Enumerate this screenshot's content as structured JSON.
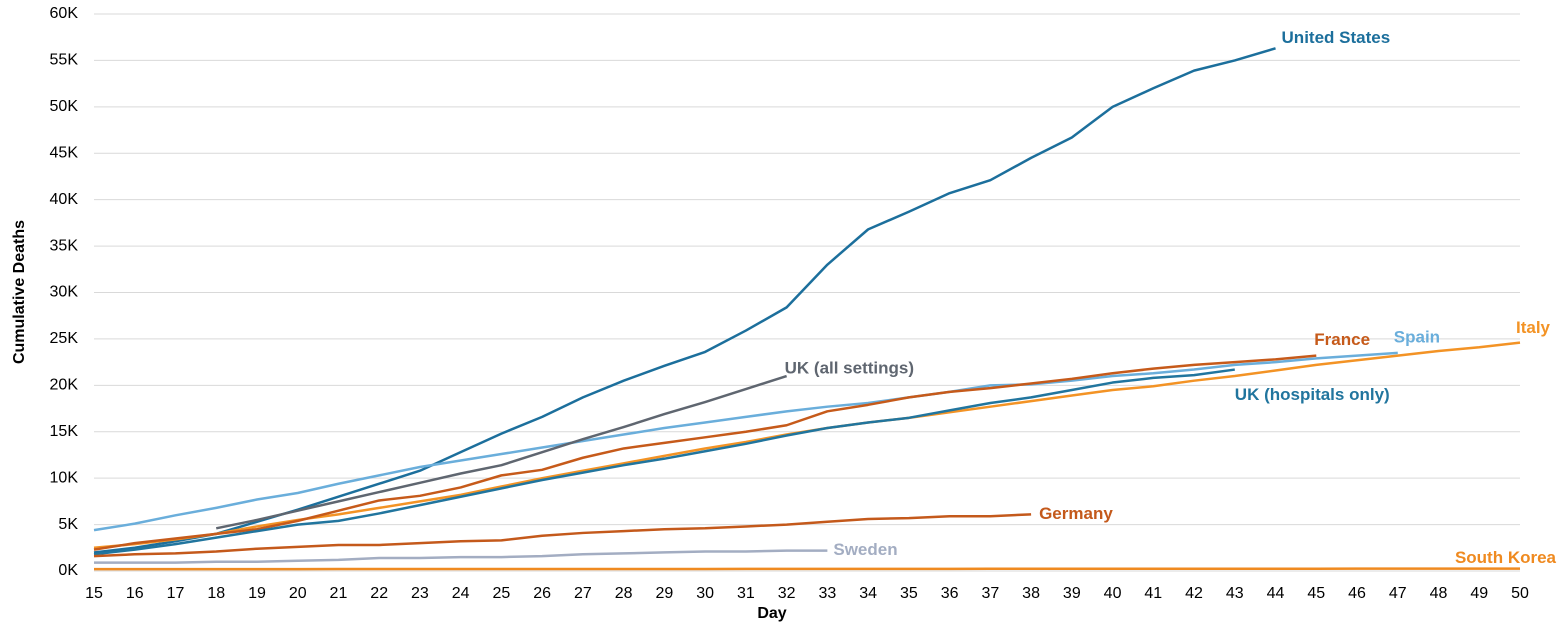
{
  "chart_data": {
    "type": "line",
    "x_label": "Day",
    "y_label": "Cumulative Deaths",
    "x": [
      15,
      16,
      17,
      18,
      19,
      20,
      21,
      22,
      23,
      24,
      25,
      26,
      27,
      28,
      29,
      30,
      31,
      32,
      33,
      34,
      35,
      36,
      37,
      38,
      39,
      40,
      41,
      42,
      43,
      44,
      45,
      46,
      47,
      48,
      49,
      50
    ],
    "xlim": [
      15,
      50
    ],
    "xticks": [
      15,
      16,
      17,
      18,
      19,
      20,
      21,
      22,
      23,
      24,
      25,
      26,
      27,
      28,
      29,
      30,
      31,
      32,
      33,
      34,
      35,
      36,
      37,
      38,
      39,
      40,
      41,
      42,
      43,
      44,
      45,
      46,
      47,
      48,
      49,
      50
    ],
    "ylim": [
      0,
      60000
    ],
    "yticks": [
      {
        "value": 0,
        "label": "0K"
      },
      {
        "value": 5000,
        "label": "5K"
      },
      {
        "value": 10000,
        "label": "10K"
      },
      {
        "value": 15000,
        "label": "15K"
      },
      {
        "value": 20000,
        "label": "20K"
      },
      {
        "value": 25000,
        "label": "25K"
      },
      {
        "value": 30000,
        "label": "30K"
      },
      {
        "value": 35000,
        "label": "35K"
      },
      {
        "value": 40000,
        "label": "40K"
      },
      {
        "value": 45000,
        "label": "45K"
      },
      {
        "value": 50000,
        "label": "50K"
      },
      {
        "value": 55000,
        "label": "55K"
      },
      {
        "value": 60000,
        "label": "60K"
      }
    ],
    "grid": true,
    "series": [
      {
        "name": "United States",
        "color": "#1c6f9c",
        "values": [
          2000,
          2500,
          3200,
          4000,
          5300,
          6600,
          8000,
          9400,
          10800,
          12800,
          14800,
          16600,
          18700,
          20500,
          22100,
          23600,
          25900,
          28400,
          33000,
          36800,
          38700,
          40700,
          42100,
          44500,
          46700,
          50000,
          52000,
          53900,
          55000,
          56300,
          null,
          null,
          null,
          null,
          null,
          null
        ]
      },
      {
        "name": "Italy",
        "color": "#f39325",
        "values": [
          2500,
          2900,
          3400,
          4000,
          4800,
          5500,
          6100,
          6800,
          7500,
          8200,
          9100,
          10000,
          10800,
          11600,
          12400,
          13200,
          13900,
          14700,
          15400,
          16000,
          16500,
          17100,
          17700,
          18300,
          18900,
          19500,
          19900,
          20500,
          21000,
          21600,
          22200,
          22700,
          23200,
          23700,
          24100,
          24600
        ]
      },
      {
        "name": "Spain",
        "color": "#6aaedb",
        "values": [
          4400,
          5100,
          6000,
          6800,
          7700,
          8400,
          9400,
          10300,
          11200,
          11900,
          12600,
          13300,
          14000,
          14700,
          15400,
          16000,
          16600,
          17200,
          17700,
          18100,
          18700,
          19300,
          20000,
          20100,
          20500,
          21000,
          21300,
          21700,
          22200,
          22500,
          22900,
          23200,
          23500,
          null,
          null,
          null
        ]
      },
      {
        "name": "France",
        "color": "#c65a1a",
        "values": [
          2300,
          3000,
          3500,
          4000,
          4500,
          5400,
          6500,
          7600,
          8100,
          9000,
          10300,
          10900,
          12200,
          13200,
          13800,
          14400,
          15000,
          15700,
          17200,
          17900,
          18700,
          19300,
          19700,
          20200,
          20700,
          21300,
          21800,
          22200,
          22500,
          22800,
          23200,
          null,
          null,
          null,
          null,
          null
        ]
      },
      {
        "name": "UK (hospitals only)",
        "color": "#21759e",
        "values": [
          1800,
          2300,
          2900,
          3600,
          4300,
          5000,
          5400,
          6200,
          7100,
          8000,
          8900,
          9800,
          10600,
          11400,
          12100,
          12900,
          13700,
          14600,
          15400,
          16000,
          16500,
          17300,
          18100,
          18700,
          19500,
          20300,
          20800,
          21100,
          21700,
          null,
          null,
          null,
          null,
          null,
          null,
          null
        ]
      },
      {
        "name": "UK (all settings)",
        "color": "#5f6670",
        "values": [
          null,
          null,
          null,
          4600,
          5500,
          6500,
          7500,
          8500,
          9500,
          10500,
          11400,
          12800,
          14200,
          15500,
          16900,
          18200,
          19600,
          21000,
          null,
          null,
          null,
          null,
          null,
          null,
          null,
          null,
          null,
          null,
          null,
          null,
          null,
          null,
          null,
          null,
          null,
          null
        ]
      },
      {
        "name": "Germany",
        "color": "#c4591b",
        "values": [
          1600,
          1800,
          1900,
          2100,
          2400,
          2600,
          2800,
          2800,
          3000,
          3200,
          3300,
          3800,
          4100,
          4300,
          4500,
          4600,
          4800,
          5000,
          5300,
          5600,
          5700,
          5900,
          5900,
          6100,
          null,
          null,
          null,
          null,
          null,
          null,
          null,
          null,
          null,
          null,
          null,
          null
        ]
      },
      {
        "name": "Sweden",
        "color": "#a3adc2",
        "values": [
          900,
          900,
          900,
          1000,
          1000,
          1100,
          1200,
          1400,
          1400,
          1500,
          1500,
          1600,
          1800,
          1900,
          2000,
          2100,
          2100,
          2200,
          2200,
          null,
          null,
          null,
          null,
          null,
          null,
          null,
          null,
          null,
          null,
          null,
          null,
          null,
          null,
          null,
          null,
          null
        ]
      },
      {
        "name": "South Korea",
        "color": "#ef8a20",
        "values": [
          200,
          200,
          200,
          200,
          200,
          200,
          210,
          210,
          210,
          210,
          220,
          220,
          220,
          220,
          220,
          220,
          230,
          230,
          230,
          230,
          230,
          230,
          240,
          240,
          240,
          240,
          240,
          240,
          240,
          240,
          240,
          250,
          250,
          250,
          250,
          250
        ]
      }
    ]
  }
}
